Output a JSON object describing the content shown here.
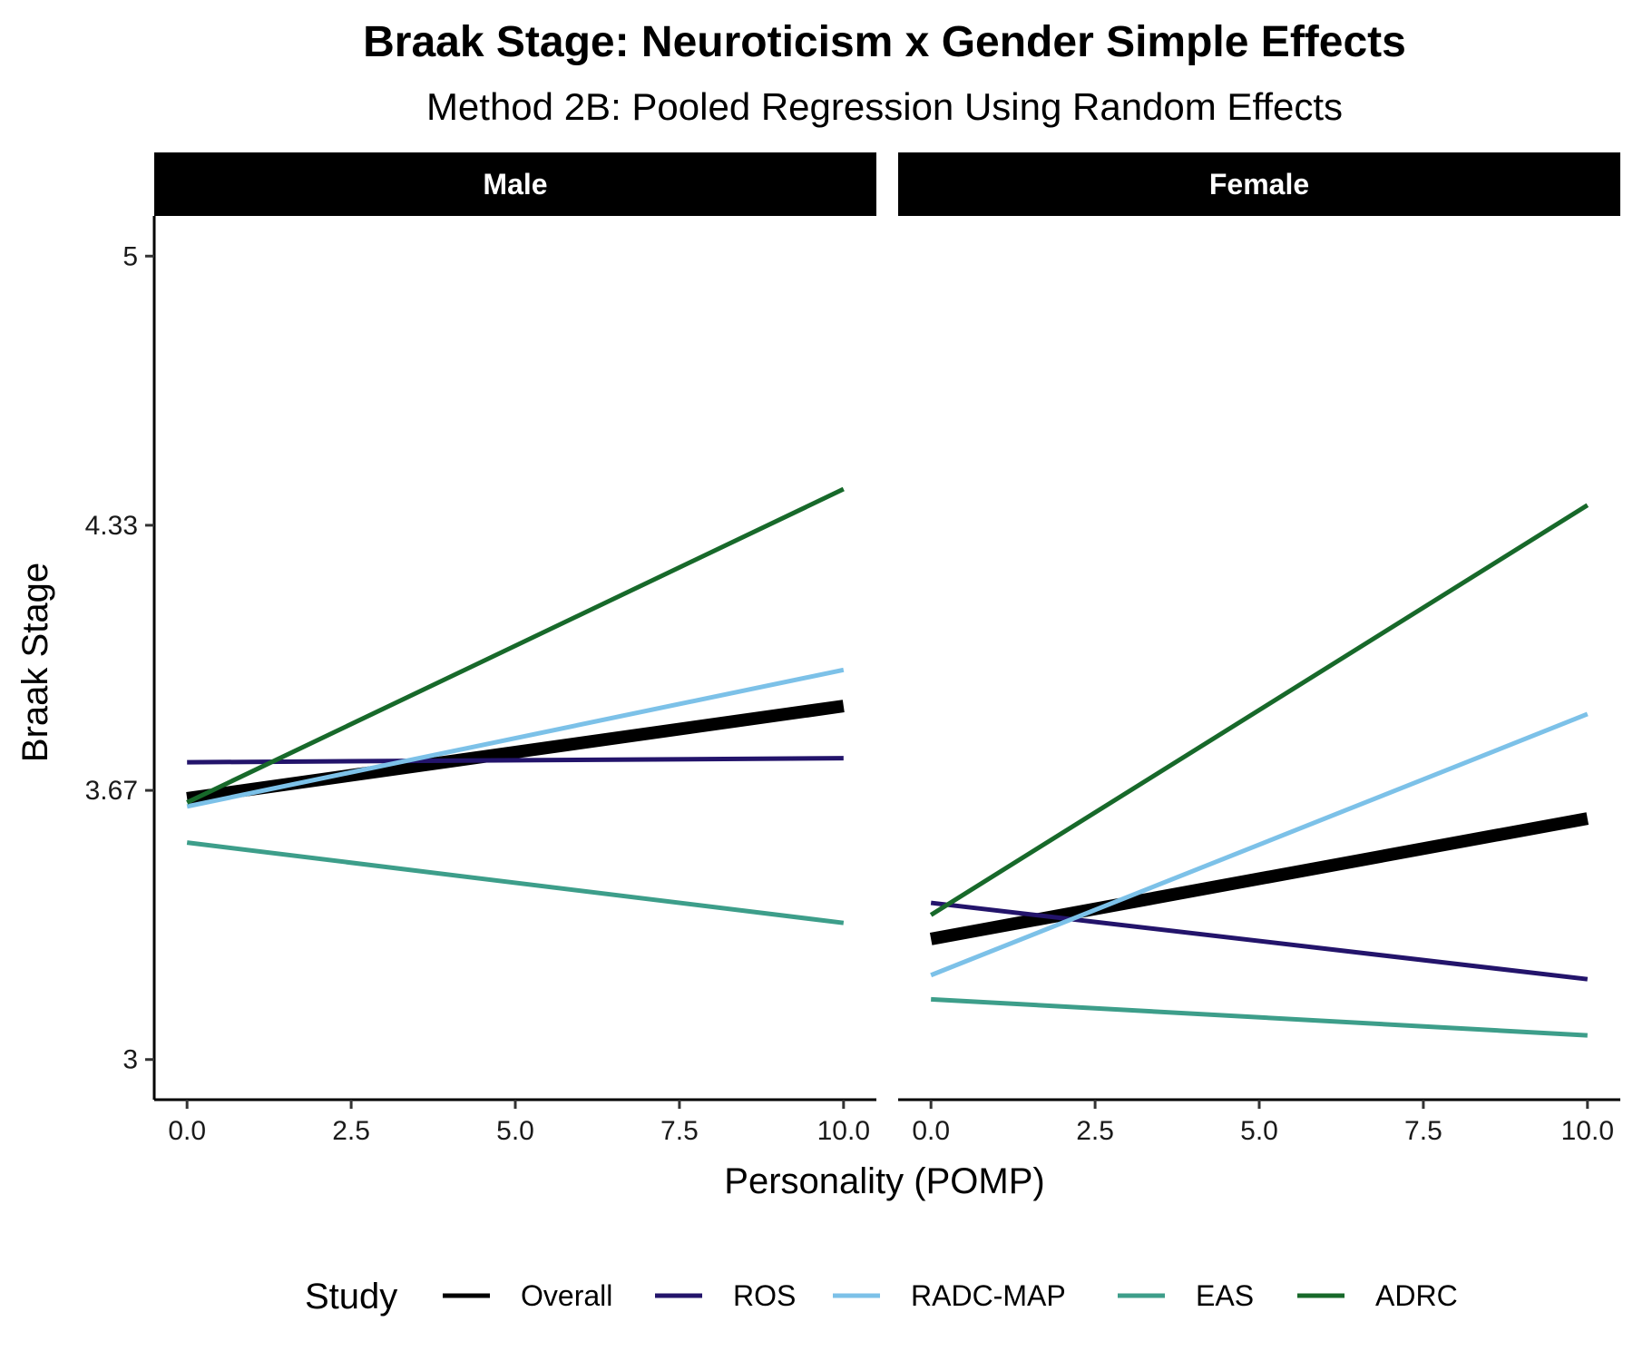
{
  "chart_data": {
    "type": "line",
    "title": "Braak Stage: Neuroticism x Gender Simple Effects",
    "subtitle": "Method 2B: Pooled Regression Using Random Effects",
    "xlabel": "Personality (POMP)",
    "ylabel": "Braak Stage",
    "xlim": [
      -0.5,
      10.5
    ],
    "ylim": [
      2.9,
      5.1
    ],
    "x_ticks": [
      0,
      2.5,
      5,
      7.5,
      10
    ],
    "x_tick_labels": [
      "0.0",
      "2.5",
      "5.0",
      "7.5",
      "10.0"
    ],
    "y_ticks": [
      3,
      3.67,
      4.33,
      5
    ],
    "y_tick_labels": [
      "3",
      "3.67",
      "4.33",
      "5"
    ],
    "grid": false,
    "legend": {
      "title": "Study",
      "position": "bottom",
      "entries": [
        "Overall",
        "ROS",
        "RADC-MAP",
        "EAS",
        "ADRC"
      ]
    },
    "series_styles": {
      "Overall": {
        "color": "#000000",
        "width": 14
      },
      "ROS": {
        "color": "#23146b",
        "width": 5
      },
      "RADC-MAP": {
        "color": "#7cc1e8",
        "width": 5
      },
      "EAS": {
        "color": "#3d9e8a",
        "width": 5
      },
      "ADRC": {
        "color": "#17692a",
        "width": 5
      }
    },
    "panels": [
      {
        "label": "Male",
        "series": [
          {
            "name": "Overall",
            "x": [
              0,
              10
            ],
            "y": [
              3.65,
              3.88
            ]
          },
          {
            "name": "ROS",
            "x": [
              0,
              10
            ],
            "y": [
              3.74,
              3.75
            ]
          },
          {
            "name": "RADC-MAP",
            "x": [
              0,
              10
            ],
            "y": [
              3.63,
              3.97
            ]
          },
          {
            "name": "EAS",
            "x": [
              0,
              10
            ],
            "y": [
              3.54,
              3.34
            ]
          },
          {
            "name": "ADRC",
            "x": [
              0,
              10
            ],
            "y": [
              3.64,
              4.42
            ]
          }
        ]
      },
      {
        "label": "Female",
        "series": [
          {
            "name": "Overall",
            "x": [
              0,
              10
            ],
            "y": [
              3.3,
              3.6
            ]
          },
          {
            "name": "ROS",
            "x": [
              0,
              10
            ],
            "y": [
              3.39,
              3.2
            ]
          },
          {
            "name": "RADC-MAP",
            "x": [
              0,
              10
            ],
            "y": [
              3.21,
              3.86
            ]
          },
          {
            "name": "EAS",
            "x": [
              0,
              10
            ],
            "y": [
              3.15,
              3.06
            ]
          },
          {
            "name": "ADRC",
            "x": [
              0,
              10
            ],
            "y": [
              3.36,
              4.38
            ]
          }
        ]
      }
    ]
  }
}
